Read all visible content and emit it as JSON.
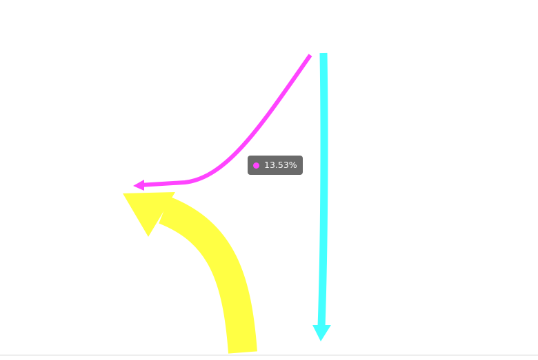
{
  "chart_data": {
    "type": "flow",
    "series": [
      {
        "value_label": "",
        "color": "#ffff44"
      },
      {
        "value_label": "13.53%",
        "color": "#ff44ff"
      },
      {
        "value_label": "",
        "color": "#44ffff"
      }
    ],
    "tooltip": {
      "value_label": "13.53%",
      "color": "#ff44ff"
    }
  }
}
